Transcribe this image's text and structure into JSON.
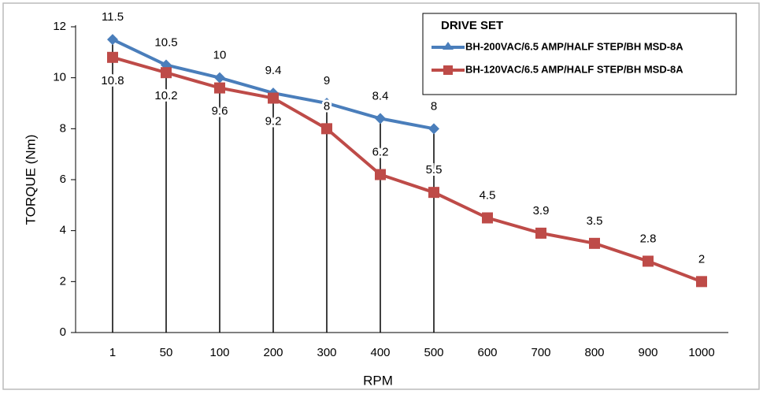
{
  "chart_data": {
    "type": "line",
    "x_label": "RPM",
    "y_label": "TORQUE (Nm)",
    "legend_title": "DRIVE SET",
    "categories": [
      "1",
      "50",
      "100",
      "200",
      "300",
      "400",
      "500",
      "600",
      "700",
      "800",
      "900",
      "1000"
    ],
    "series": [
      {
        "name": "BH-200VAC/6.5 AMP/HALF STEP/BH MSD-8A",
        "color": "#4a7ebb",
        "marker": "diamond",
        "values": [
          11.5,
          10.5,
          10,
          9.4,
          9,
          8.4,
          8,
          null,
          null,
          null,
          null,
          null
        ]
      },
      {
        "name": "BH-120VAC/6.5 AMP/HALF STEP/BH MSD-8A",
        "color": "#be4b48",
        "marker": "square",
        "values": [
          10.8,
          10.2,
          9.6,
          9.2,
          8,
          6.2,
          5.5,
          4.5,
          3.9,
          3.5,
          2.8,
          2
        ]
      }
    ],
    "ylim": [
      0,
      12
    ],
    "yticks": [
      0,
      2,
      4,
      6,
      8,
      10,
      12
    ],
    "grid": false,
    "drop_lines": true,
    "legend": "upper-right"
  }
}
